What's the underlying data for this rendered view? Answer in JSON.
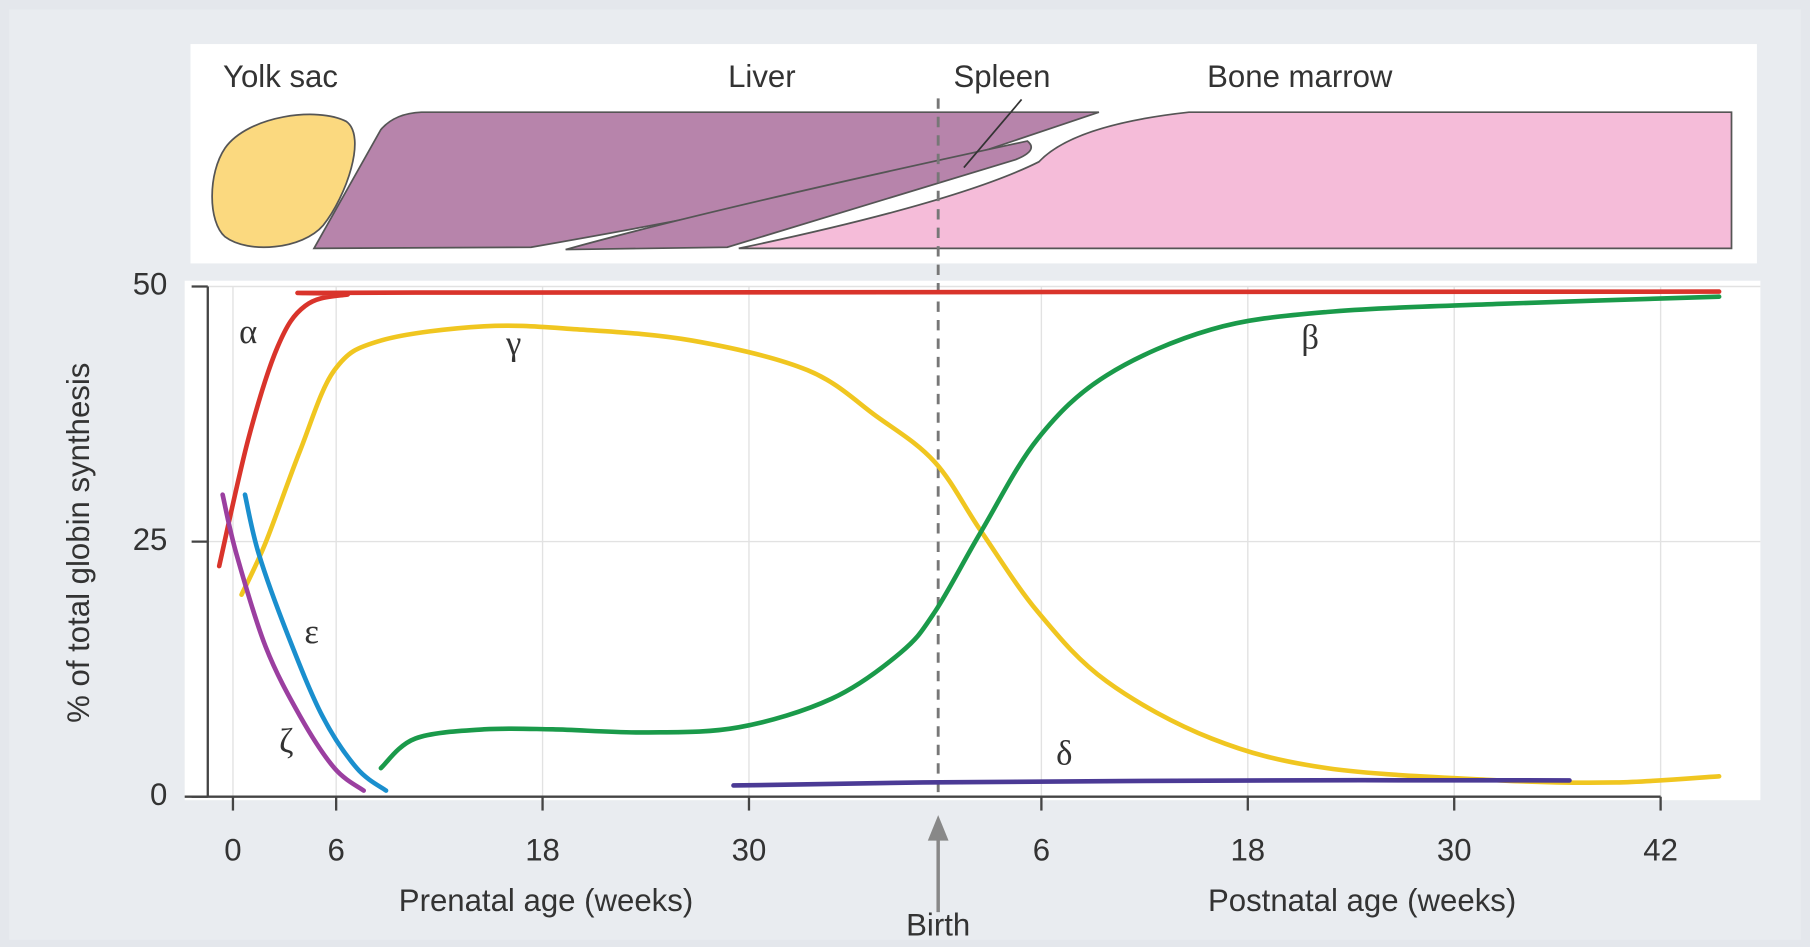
{
  "chart_data": {
    "type": "line",
    "organs": [
      "Yolk sac",
      "Liver",
      "Spleen",
      "Bone marrow"
    ],
    "ylabel": "% of total globin synthesis",
    "xlabels": [
      "Prenatal age (weeks)",
      "Postnatal age (weeks)"
    ],
    "birth": {
      "label": "Birth",
      "x": 41
    },
    "xlim": [
      -2,
      89
    ],
    "xticks": [
      0,
      6,
      18,
      30,
      {
        "value": 47,
        "label": "6"
      },
      {
        "value": 59,
        "label": "18"
      },
      {
        "value": 71,
        "label": "30"
      },
      {
        "value": 83,
        "label": "42"
      }
    ],
    "ylim": [
      0,
      50
    ],
    "yticks": [
      0,
      25,
      50
    ],
    "grid": true,
    "series": [
      {
        "name": "α",
        "color": "#d9342b",
        "x": [
          -0.8,
          0.9,
          2.6,
          4.2,
          6.6,
          10.6,
          86.4
        ],
        "values": [
          22.6,
          35.1,
          44.1,
          48.1,
          49.2,
          49.4,
          49.5
        ]
      },
      {
        "name": "γ",
        "color": "#f0c620",
        "x": [
          0.5,
          1.9,
          3.9,
          5.9,
          8.6,
          14.6,
          20,
          26.7,
          33.4,
          37.4,
          40.8,
          43.5,
          46.8,
          50.8,
          56.9,
          63.6,
          73.7,
          80.4,
          86.4
        ],
        "values": [
          19.8,
          24.9,
          33.9,
          41.8,
          44.7,
          46.1,
          45.8,
          44.7,
          41.8,
          37.3,
          32.8,
          26,
          18.1,
          11.3,
          5.7,
          2.8,
          1.6,
          1.4,
          2.0
        ]
      },
      {
        "name": "β",
        "color": "#1a9a4a",
        "x": [
          8.6,
          10.6,
          14.6,
          18.6,
          24,
          29.4,
          34.8,
          38.8,
          40.8,
          43.5,
          46.8,
          50.8,
          56.9,
          63.6,
          73.7,
          86.4
        ],
        "values": [
          2.8,
          5.7,
          6.6,
          6.6,
          6.3,
          6.8,
          9.6,
          14.1,
          18.1,
          26,
          35.1,
          41.3,
          45.8,
          47.5,
          48.3,
          49
        ]
      },
      {
        "name": "ε",
        "color": "#1a8fce",
        "x": [
          0.7,
          1.5,
          3.2,
          5.2,
          7.2,
          8.9
        ],
        "values": [
          29.6,
          23.8,
          15.8,
          7.9,
          2.8,
          0.6
        ]
      },
      {
        "name": "ζ",
        "color": "#9b3fa0",
        "x": [
          -0.6,
          0.2,
          1.9,
          3.9,
          5.9,
          7.6
        ],
        "values": [
          29.6,
          23.8,
          14.7,
          7.9,
          2.8,
          0.6
        ]
      },
      {
        "name": "δ",
        "color": "#4b3a95",
        "x": [
          29.1,
          40.1,
          60.3,
          77.7
        ],
        "values": [
          1.1,
          1.4,
          1.6,
          1.6
        ]
      }
    ]
  }
}
